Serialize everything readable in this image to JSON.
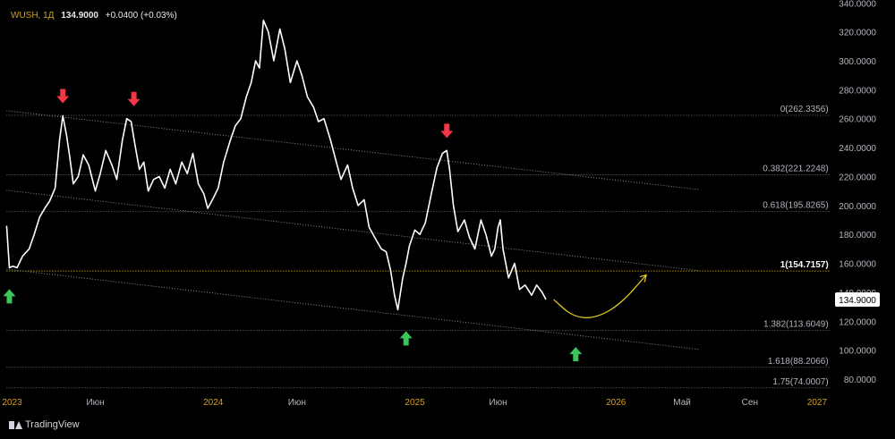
{
  "header": {
    "symbol": "WUSH, 1Д",
    "last": "134.9000",
    "change": "+0.0400 (+0.03%)"
  },
  "brand": {
    "name": "TradingView",
    "icon": "tradingview-logo-icon"
  },
  "colors": {
    "background": "#000000",
    "price_line": "#ffffff",
    "fib_text": "#b2b5be",
    "fib_highlight": "#f5d90a",
    "arrow_down": "#f23645",
    "arrow_up": "#3cc55a",
    "projection": "#e8d21f",
    "axis_text": "#b2b5be",
    "year_label": "#d4a017"
  },
  "chart_data": {
    "type": "line",
    "title": "WUSH, 1Д",
    "ylim": [
      72,
      342
    ],
    "xlim": [
      "2022-12-10",
      "2027-02-01"
    ],
    "y_ticks": [
      "80.0000",
      "100.0000",
      "120.0000",
      "140.0000",
      "160.0000",
      "180.0000",
      "200.0000",
      "220.0000",
      "240.0000",
      "260.0000",
      "280.0000",
      "300.0000",
      "320.0000",
      "340.0000"
    ],
    "current_price_label": "134.9000",
    "x_ticks": [
      {
        "label": "2023",
        "date": "2023-01-01",
        "year": true
      },
      {
        "label": "Июн",
        "date": "2023-06-01",
        "year": false
      },
      {
        "label": "2024",
        "date": "2024-01-01",
        "year": true
      },
      {
        "label": "Июн",
        "date": "2024-06-01",
        "year": false
      },
      {
        "label": "2025",
        "date": "2025-01-01",
        "year": true
      },
      {
        "label": "Июн",
        "date": "2025-06-01",
        "year": false
      },
      {
        "label": "2026",
        "date": "2026-01-01",
        "year": true
      },
      {
        "label": "Май",
        "date": "2026-05-01",
        "year": false
      },
      {
        "label": "Сен",
        "date": "2026-09-01",
        "year": false
      },
      {
        "label": "2027",
        "date": "2027-01-01",
        "year": true
      }
    ],
    "series": [
      {
        "x": [
          "2022-12-22",
          "2022-12-27",
          "2023-01-02",
          "2023-01-10",
          "2023-01-20",
          "2023-02-01",
          "2023-02-10",
          "2023-02-20",
          "2023-03-01",
          "2023-03-10",
          "2023-03-20",
          "2023-03-28",
          "2023-04-03",
          "2023-04-10",
          "2023-04-15",
          "2023-04-22",
          "2023-05-01",
          "2023-05-10",
          "2023-05-20",
          "2023-06-01",
          "2023-06-10",
          "2023-06-20",
          "2023-07-01",
          "2023-07-10",
          "2023-07-20",
          "2023-07-28",
          "2023-08-05",
          "2023-08-12",
          "2023-08-20",
          "2023-08-28",
          "2023-09-05",
          "2023-09-15",
          "2023-09-25",
          "2023-10-05",
          "2023-10-15",
          "2023-10-25",
          "2023-11-05",
          "2023-11-15",
          "2023-11-25",
          "2023-12-05",
          "2023-12-15",
          "2023-12-22",
          "2024-01-01",
          "2024-01-10",
          "2024-01-20",
          "2024-02-01",
          "2024-02-10",
          "2024-02-20",
          "2024-03-01",
          "2024-03-10",
          "2024-03-18",
          "2024-03-25",
          "2024-04-01",
          "2024-04-10",
          "2024-04-20",
          "2024-05-01",
          "2024-05-10",
          "2024-05-20",
          "2024-06-01",
          "2024-06-10",
          "2024-06-20",
          "2024-07-01",
          "2024-07-10",
          "2024-07-20",
          "2024-08-01",
          "2024-08-10",
          "2024-08-20",
          "2024-09-01",
          "2024-09-10",
          "2024-09-20",
          "2024-10-01",
          "2024-10-10",
          "2024-10-20",
          "2024-11-01",
          "2024-11-10",
          "2024-11-18",
          "2024-11-25",
          "2024-12-01",
          "2024-12-10",
          "2024-12-16",
          "2024-12-22",
          "2025-01-01",
          "2025-01-10",
          "2025-01-20",
          "2025-02-01",
          "2025-02-10",
          "2025-02-20",
          "2025-02-28",
          "2025-03-05",
          "2025-03-12",
          "2025-03-20",
          "2025-04-01",
          "2025-04-10",
          "2025-04-20",
          "2025-05-01",
          "2025-05-10",
          "2025-05-20",
          "2025-05-26",
          "2025-06-01",
          "2025-06-05",
          "2025-06-10",
          "2025-06-20",
          "2025-07-01",
          "2025-07-10",
          "2025-07-20",
          "2025-08-01",
          "2025-08-10",
          "2025-08-20",
          "2025-08-27"
        ],
        "y": [
          186,
          157,
          158,
          157,
          165,
          170,
          180,
          192,
          198,
          203,
          212,
          245,
          262,
          248,
          235,
          215,
          220,
          235,
          228,
          210,
          222,
          238,
          228,
          218,
          245,
          260,
          258,
          242,
          225,
          230,
          210,
          218,
          220,
          212,
          225,
          215,
          230,
          222,
          236,
          215,
          208,
          198,
          205,
          212,
          230,
          245,
          255,
          260,
          275,
          285,
          300,
          295,
          328,
          320,
          300,
          322,
          308,
          285,
          300,
          290,
          275,
          268,
          258,
          260,
          245,
          232,
          218,
          228,
          212,
          200,
          204,
          185,
          178,
          170,
          168,
          155,
          138,
          128,
          150,
          160,
          172,
          183,
          180,
          188,
          210,
          226,
          236,
          238,
          225,
          200,
          182,
          190,
          178,
          170,
          190,
          180,
          165,
          170,
          185,
          190,
          170,
          150,
          160,
          142,
          145,
          138,
          145,
          140,
          135
        ]
      }
    ],
    "channel_lines": [
      {
        "x": [
          "2022-12-22",
          "2026-06-01"
        ],
        "y": [
          265.5,
          211
        ]
      },
      {
        "x": [
          "2022-12-22",
          "2026-06-01"
        ],
        "y": [
          210.5,
          155
        ]
      },
      {
        "x": [
          "2022-12-22",
          "2026-06-01"
        ],
        "y": [
          156,
          100.5
        ]
      }
    ],
    "fibonacci_levels": [
      {
        "label": "0(262.3356)",
        "value": 262.3356
      },
      {
        "label": "0.382(221.2248)",
        "value": 221.2248
      },
      {
        "label": "0.618(195.8265)",
        "value": 195.8265
      },
      {
        "label": "1(154.7157)",
        "value": 154.7157,
        "highlight": true
      },
      {
        "label": "1.382(113.6049)",
        "value": 113.6049
      },
      {
        "label": "1.618(88.2066)",
        "value": 88.2066
      },
      {
        "label": "1.75(74.0007)",
        "value": 74.0007
      }
    ],
    "fib_range": [
      "2022-12-22",
      "2027-01-25"
    ],
    "markers": [
      {
        "type": "down",
        "date": "2023-04-03",
        "value": 262
      },
      {
        "type": "down",
        "date": "2023-08-10",
        "value": 260
      },
      {
        "type": "down",
        "date": "2025-02-28",
        "value": 238
      },
      {
        "type": "up",
        "date": "2022-12-27",
        "value": 157
      },
      {
        "type": "up",
        "date": "2024-12-16",
        "value": 128
      },
      {
        "type": "up",
        "date": "2025-10-20",
        "value": 117
      }
    ],
    "projection": {
      "x": [
        "2025-09-10",
        "2025-10-15",
        "2025-11-25",
        "2026-01-10",
        "2026-02-25"
      ],
      "y": [
        135,
        123,
        122,
        132,
        152
      ]
    }
  }
}
